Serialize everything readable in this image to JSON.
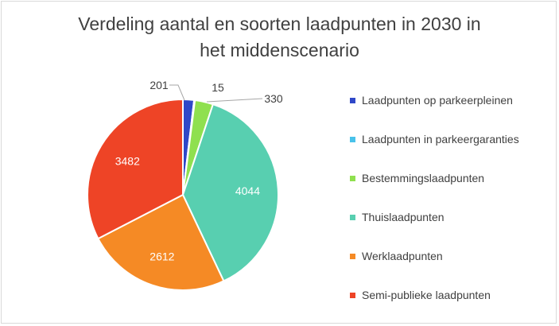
{
  "chart_data": {
    "type": "pie",
    "title": "Verdeling aantal en soorten laadpunten in 2030 in het middenscenario",
    "title_lines": [
      "Verdeling aantal en soorten laadpunten in 2030 in",
      "het middenscenario"
    ],
    "categories": [
      "Laadpunten op parkeerpleinen",
      "Laadpunten in parkeergaranties",
      "Bestemmingslaadpunten",
      "Thuislaadpunten",
      "Werklaadpunten",
      "Semi-publieke laadpunten"
    ],
    "values": [
      201,
      15,
      330,
      4044,
      2612,
      3482
    ],
    "colors": [
      "#2f48c8",
      "#49c2ea",
      "#8fe04f",
      "#58cfb0",
      "#f58a25",
      "#ee4426"
    ],
    "legend_position": "right"
  }
}
